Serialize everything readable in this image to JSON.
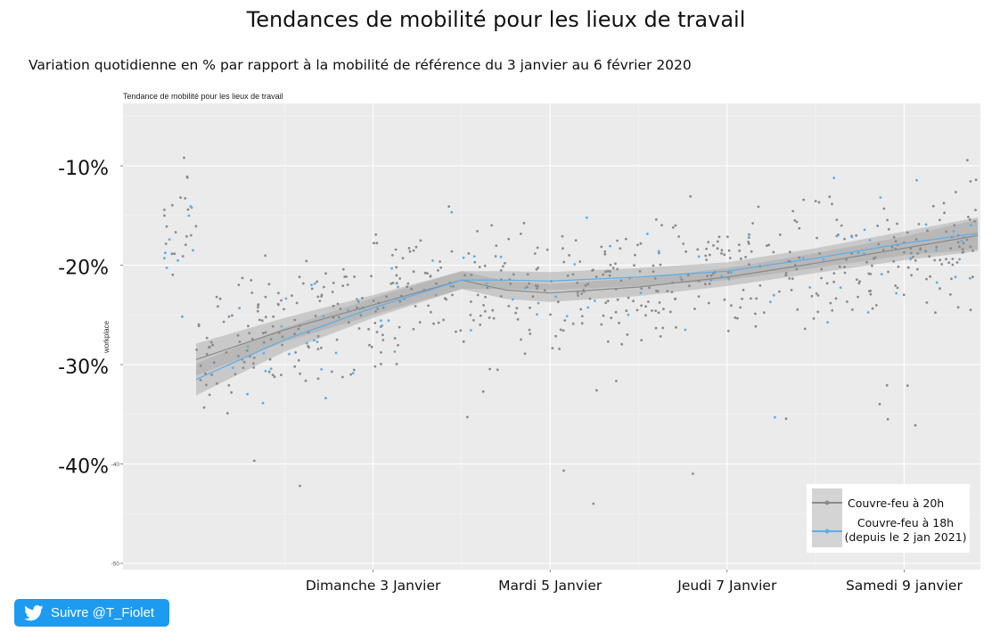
{
  "page": {
    "title": "Tendances de mobilité pour les lieux de travail",
    "subtitle": "Variation quotidienne en % par rapport à la mobilité de référence du 3 janvier au 6 février 2020"
  },
  "follow_button": {
    "label": "Suivre @T_Fiolet",
    "icon": "twitter-bird-icon",
    "color": "#1d9bf0"
  },
  "chart_data": {
    "type": "scatter",
    "title": "Tendance de mobilité pour les lieux de travail",
    "ylabel": "workplace",
    "ylim": [
      -51,
      -5
    ],
    "yticks": [
      -10,
      -20,
      -30,
      -40,
      -50
    ],
    "ytick_labels_large": [
      "-10%",
      "-20%",
      "-30%",
      "-40%"
    ],
    "ytick_labels_small": [
      "",
      "",
      "",
      "-40",
      "-50"
    ],
    "x_range": [
      "2021-01-01",
      "2021-01-10"
    ],
    "x_ticks": [
      "2021-01-03",
      "2021-01-05",
      "2021-01-07",
      "2021-01-09"
    ],
    "x_tick_labels": [
      "Dimanche 3 Janvier",
      "Mardi 5 Janvier",
      "Jeudi 7 Janvier",
      "Samedi 9 janvier"
    ],
    "grid": true,
    "legend_position": "bottom-right",
    "series": [
      {
        "name": "Couvre-feu à 20h",
        "color": "#8a8a8a",
        "trend_x": [
          "2021-01-01",
          "2021-01-02",
          "2021-01-03",
          "2021-01-04",
          "2021-01-04T12:00",
          "2021-01-05",
          "2021-01-06",
          "2021-01-07",
          "2021-01-08",
          "2021-01-09",
          "2021-01-09T20:00"
        ],
        "trend_y": [
          -29.5,
          -26.5,
          -24,
          -21.5,
          -22.5,
          -22.8,
          -22.2,
          -21.2,
          -19.8,
          -18.3,
          -17
        ]
      },
      {
        "name": "Couvre-feu à 18h\n(depuis le 2 jan 2021)",
        "color": "#5aaee8",
        "trend_x": [
          "2021-01-01",
          "2021-01-02",
          "2021-01-03",
          "2021-01-04",
          "2021-01-04T12:00",
          "2021-01-05",
          "2021-01-06",
          "2021-01-07",
          "2021-01-08",
          "2021-01-09",
          "2021-01-09T20:00"
        ],
        "trend_y": [
          -31.5,
          -27.5,
          -24.3,
          -21.5,
          -21.5,
          -21.6,
          -21.2,
          -20.6,
          -19.3,
          -17.8,
          -16.8
        ]
      }
    ],
    "band_halfwidth": [
      1.6,
      1.2,
      1.0,
      0.9,
      0.9,
      0.9,
      0.9,
      0.9,
      1.0,
      1.2,
      1.6
    ]
  }
}
